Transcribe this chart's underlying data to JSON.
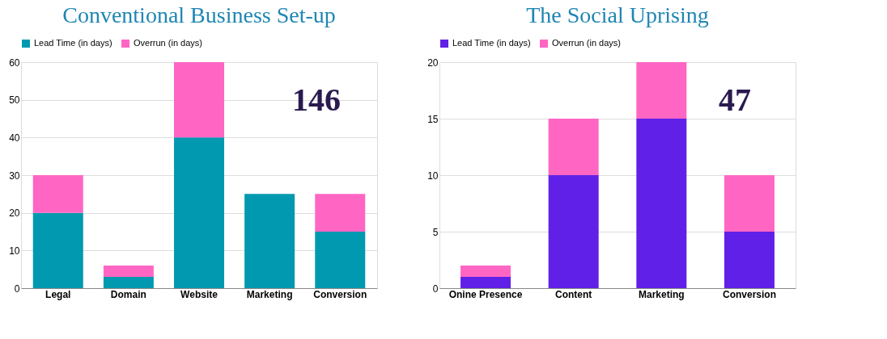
{
  "chart_data": [
    {
      "type": "bar",
      "stacked": true,
      "title": "Conventional Business Set-up",
      "categories": [
        "Legal",
        "Domain",
        "Website",
        "Marketing",
        "Conversion"
      ],
      "series": [
        {
          "name": "Lead Time (in days)",
          "color": "#0099b0",
          "values": [
            20,
            3,
            40,
            25,
            15
          ]
        },
        {
          "name": "Overrun (in days)",
          "color": "#ff66c4",
          "values": [
            10,
            3,
            20,
            0,
            10
          ]
        }
      ],
      "ylim": [
        0,
        60
      ],
      "yticks": [
        0,
        10,
        20,
        30,
        40,
        50,
        60
      ],
      "grid": "y",
      "legend": "top",
      "annotations": [
        "146"
      ]
    },
    {
      "type": "bar",
      "stacked": true,
      "title": "The Social Uprising",
      "categories": [
        "Onine Presence",
        "Content",
        "Marketing",
        "Conversion"
      ],
      "series": [
        {
          "name": "Lead Time (in days)",
          "color": "#6020e8",
          "values": [
            1,
            10,
            15,
            5
          ]
        },
        {
          "name": "Overrun (in days)",
          "color": "#ff66c4",
          "values": [
            1,
            5,
            5,
            5
          ]
        }
      ],
      "ylim": [
        0,
        20
      ],
      "yticks": [
        0,
        5,
        10,
        15,
        20
      ],
      "grid": "y",
      "legend": "top",
      "annotations": [
        "47"
      ]
    }
  ]
}
